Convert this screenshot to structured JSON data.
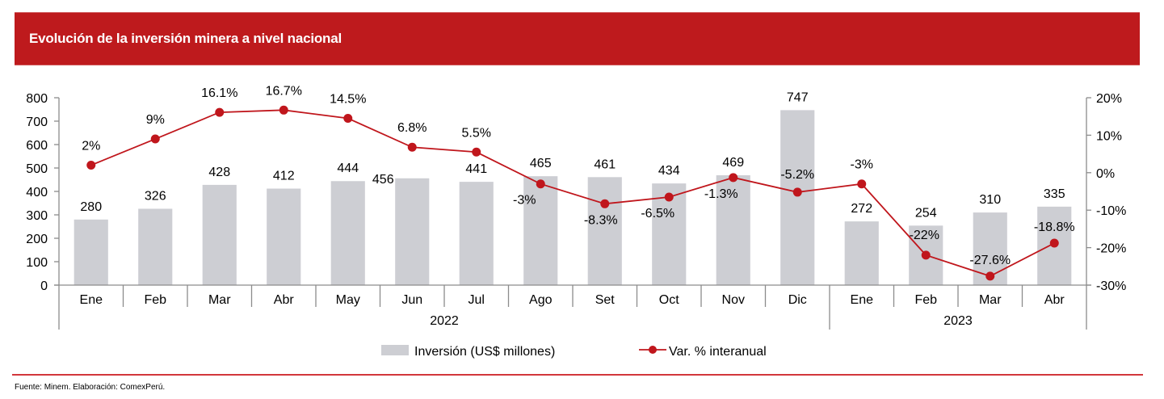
{
  "header": {
    "title": "Evolución de la inversión minera a nivel nacional",
    "band_color": "#be1a1d"
  },
  "footer": {
    "source": "Fuente: Minem. Elaboración: ComexPerú."
  },
  "chart_data": {
    "type": "bar+line",
    "title": "Evolución de la inversión minera a nivel nacional",
    "categories": [
      "Ene",
      "Feb",
      "Mar",
      "Abr",
      "May",
      "Jun",
      "Jul",
      "Ago",
      "Set",
      "Oct",
      "Nov",
      "Dic",
      "Ene",
      "Feb",
      "Mar",
      "Abr"
    ],
    "groups": [
      {
        "label": "2022",
        "count": 12
      },
      {
        "label": "2023",
        "count": 4
      }
    ],
    "series": [
      {
        "name": "Inversión (US$ millones)",
        "type": "bar",
        "axis": "left",
        "color": "#cdced3",
        "values": [
          280,
          326,
          428,
          412,
          444,
          456,
          441,
          465,
          461,
          434,
          469,
          747,
          272,
          254,
          310,
          335
        ],
        "labels": [
          "280",
          "326",
          "428",
          "412",
          "444",
          "456",
          "441",
          "465",
          "461",
          "434",
          "469",
          "747",
          "272",
          "254",
          "310",
          "335"
        ]
      },
      {
        "name": "Var. % interanual",
        "type": "line",
        "axis": "right",
        "color": "#c0161c",
        "values": [
          2,
          9,
          16.1,
          16.7,
          14.5,
          6.8,
          5.5,
          -3,
          -8.3,
          -6.5,
          -1.3,
          -5.2,
          -3,
          -22,
          -27.6,
          -18.8
        ],
        "labels": [
          "2%",
          "9%",
          "16.1%",
          "16.7%",
          "14.5%",
          "6.8%",
          "5.5%",
          "-3%",
          "-8.3%",
          "-6.5%",
          "-1.3%",
          "-5.2%",
          "-3%",
          "-22%",
          "-27.6%",
          "-18.8%"
        ]
      }
    ],
    "y_left": {
      "min": 0,
      "max": 800,
      "ticks": [
        "0",
        "100",
        "200",
        "300",
        "400",
        "500",
        "600",
        "700",
        "800"
      ]
    },
    "y_right": {
      "min": -30,
      "max": 20,
      "ticks": [
        "-30%",
        "-20%",
        "-10%",
        "0%",
        "10%",
        "20%"
      ]
    },
    "xlabel": "",
    "ylabel": "",
    "grid": false,
    "legend": {
      "position": "bottom",
      "entries": [
        "Inversión (US$ millones)",
        "Var. % interanual"
      ]
    }
  }
}
